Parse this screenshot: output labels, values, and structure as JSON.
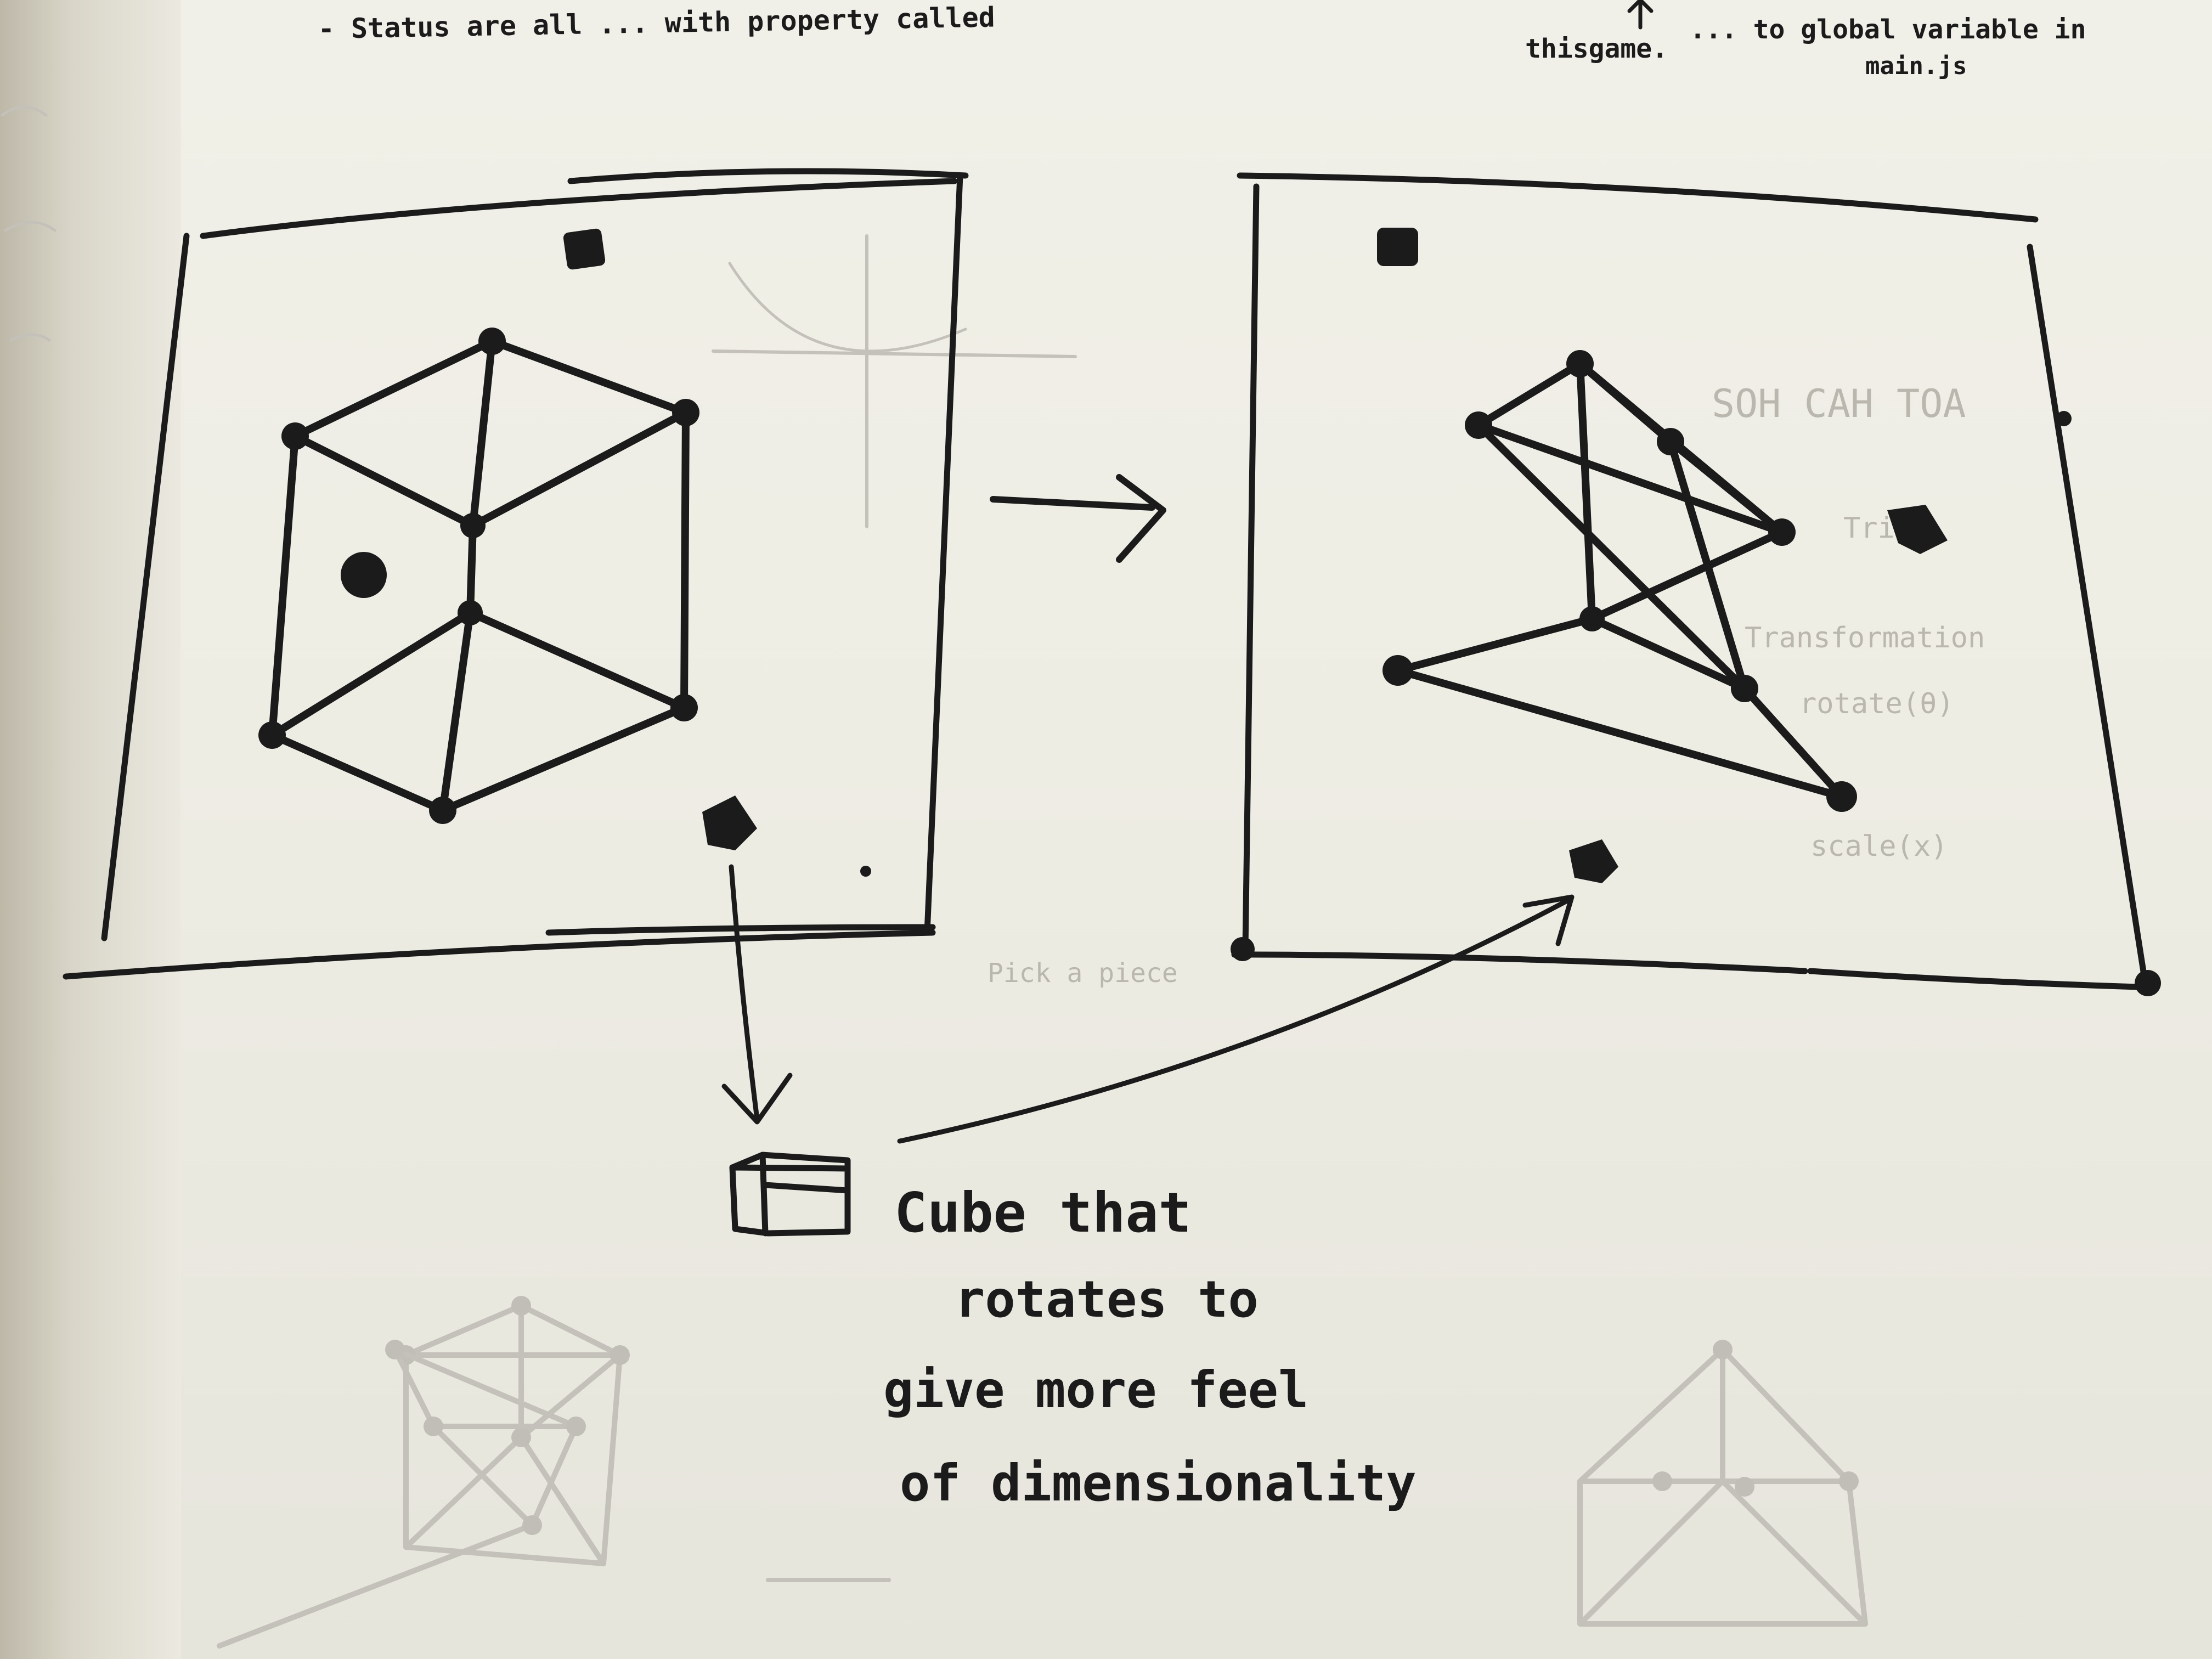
{
  "notebook_page": {
    "header_note": {
      "left_text": "- Status are all ... with property called",
      "middle_text": "thisgame.",
      "right_text": "... to global variable in",
      "right_text_2": "main.js"
    },
    "caption": {
      "line1": "Cube that",
      "line2": "rotates to",
      "line3": "give more feel",
      "line4": "of dimensionality"
    },
    "faint_background_notes": {
      "trig_label": "SOH CAH TOA",
      "side_notes": [
        "Trig",
        "Transformation",
        "rotate(θ)",
        "scale(x)",
        "Pick a piece"
      ]
    }
  }
}
